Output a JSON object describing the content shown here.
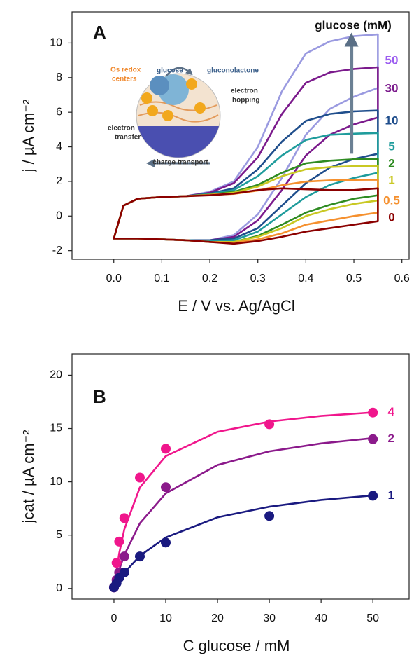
{
  "chart_data": [
    {
      "type": "line",
      "title": "A",
      "legend_title": "glucose (mM)",
      "x_label": "E / V vs. Ag/AgCl",
      "y_label": "j / µA cm⁻²",
      "x": [
        0,
        0.02,
        0.05,
        0.1,
        0.15,
        0.2,
        0.25,
        0.3,
        0.35,
        0.4,
        0.45,
        0.5,
        0.55,
        0.55,
        0.5,
        0.45,
        0.4,
        0.35,
        0.3,
        0.25,
        0.2,
        0.15,
        0.1,
        0.05,
        0
      ],
      "series": [
        {
          "name": "50",
          "color": "#9a9ae0",
          "label_color": "#9b5cf0",
          "values": [
            -1.3,
            0.6,
            1.0,
            1.1,
            1.15,
            1.4,
            2.0,
            4.0,
            7.2,
            9.4,
            10.1,
            10.4,
            10.5,
            7.4,
            6.9,
            6.2,
            4.7,
            2.2,
            0.1,
            -1.1,
            -1.4,
            -1.4,
            -1.35,
            -1.3,
            -1.3
          ]
        },
        {
          "name": "30",
          "color": "#7b1a8c",
          "label_color": "#7b1a8c",
          "values": [
            -1.3,
            0.6,
            1.0,
            1.1,
            1.15,
            1.35,
            1.9,
            3.4,
            5.9,
            7.7,
            8.3,
            8.5,
            8.6,
            5.7,
            5.3,
            4.7,
            3.5,
            1.5,
            -0.25,
            -1.2,
            -1.4,
            -1.4,
            -1.35,
            -1.3,
            -1.3
          ]
        },
        {
          "name": "10",
          "color": "#1f4e8c",
          "label_color": "#1f4e8c",
          "values": [
            -1.3,
            0.6,
            1.0,
            1.1,
            1.15,
            1.3,
            1.6,
            2.7,
            4.3,
            5.5,
            5.9,
            6.05,
            6.1,
            3.6,
            3.3,
            2.8,
            1.9,
            0.6,
            -0.7,
            -1.3,
            -1.4,
            -1.4,
            -1.35,
            -1.3,
            -1.3
          ]
        },
        {
          "name": "5",
          "color": "#1f9c9c",
          "label_color": "#1f9c9c",
          "values": [
            -1.3,
            0.6,
            1.0,
            1.1,
            1.15,
            1.27,
            1.5,
            2.3,
            3.5,
            4.4,
            4.7,
            4.76,
            4.8,
            2.5,
            2.2,
            1.8,
            1.1,
            0.1,
            -0.9,
            -1.4,
            -1.45,
            -1.4,
            -1.35,
            -1.3,
            -1.3
          ]
        },
        {
          "name": "2",
          "color": "#2e8b22",
          "label_color": "#2e8b22",
          "values": [
            -1.3,
            0.6,
            1.0,
            1.1,
            1.15,
            1.24,
            1.4,
            1.8,
            2.5,
            3.05,
            3.2,
            3.28,
            3.3,
            1.2,
            1.0,
            0.65,
            0.2,
            -0.5,
            -1.15,
            -1.5,
            -1.5,
            -1.4,
            -1.35,
            -1.3,
            -1.3
          ]
        },
        {
          "name": "1",
          "color": "#c9c823",
          "label_color": "#c9c823",
          "values": [
            -1.3,
            0.6,
            1.0,
            1.1,
            1.15,
            1.23,
            1.35,
            1.7,
            2.3,
            2.7,
            2.83,
            2.88,
            2.9,
            0.9,
            0.7,
            0.4,
            0.0,
            -0.7,
            -1.2,
            -1.5,
            -1.5,
            -1.4,
            -1.35,
            -1.3,
            -1.3
          ]
        },
        {
          "name": "0.5",
          "color": "#f5902e",
          "label_color": "#f5902e",
          "values": [
            -1.3,
            0.6,
            1.0,
            1.1,
            1.15,
            1.22,
            1.28,
            1.47,
            1.78,
            1.99,
            2.06,
            2.09,
            2.1,
            0.2,
            0.0,
            -0.25,
            -0.5,
            -1.0,
            -1.35,
            -1.55,
            -1.5,
            -1.4,
            -1.35,
            -1.3,
            -1.3
          ]
        },
        {
          "name": "0",
          "color": "#8b0000",
          "label_color": "#8b0000",
          "values": [
            -1.3,
            0.6,
            1.0,
            1.1,
            1.15,
            1.2,
            1.3,
            1.5,
            1.6,
            1.55,
            1.5,
            1.5,
            1.6,
            -0.3,
            -0.5,
            -0.7,
            -0.9,
            -1.2,
            -1.45,
            -1.6,
            -1.5,
            -1.4,
            -1.35,
            -1.3,
            -1.3
          ]
        }
      ],
      "xlim": [
        -0.087,
        0.615
      ],
      "ylim": [
        -2.5,
        11.8
      ],
      "xticks": [
        {
          "value": 0,
          "label": "0.0"
        },
        0.1,
        0.2,
        0.3,
        0.4,
        0.5,
        0.6
      ],
      "yticks": [
        -2,
        0,
        2,
        4,
        6,
        8,
        10
      ],
      "annotations": [
        "glucose",
        "gluconolactone",
        "Os redox",
        "centers",
        "electron",
        "hopping",
        "electron",
        "transfer",
        "charge transport"
      ]
    },
    {
      "type": "scatter",
      "title": "B",
      "x_label": "C glucose / mM",
      "y_label": "jcat / µA cm⁻²",
      "series": [
        {
          "name": "4",
          "color": "#f0168c",
          "x": [
            0,
            0.5,
            1,
            2,
            5,
            10,
            30,
            50
          ],
          "values": [
            0.1,
            2.4,
            4.4,
            6.6,
            10.4,
            13.1,
            15.4,
            16.5
          ],
          "fit_x": [
            0,
            1,
            2,
            5,
            10,
            20,
            30,
            40,
            50
          ],
          "fit_values": [
            0,
            3.27,
            5.54,
            9.47,
            12.41,
            14.69,
            15.65,
            16.18,
            16.51
          ]
        },
        {
          "name": "2",
          "color": "#8b1a8b",
          "x": [
            0,
            0.5,
            1,
            2,
            10,
            50
          ],
          "values": [
            0.1,
            0.8,
            1.5,
            3.0,
            9.5,
            14.0
          ],
          "fit_x": [
            0,
            1,
            2,
            5,
            10,
            20,
            30,
            40,
            50
          ],
          "fit_values": [
            0,
            1.74,
            3.14,
            6.11,
            8.92,
            11.58,
            12.86,
            13.6,
            14.1
          ]
        },
        {
          "name": "1",
          "color": "#1a1a80",
          "x": [
            0,
            0.5,
            1,
            2,
            5,
            10,
            30,
            50
          ],
          "values": [
            0.1,
            0.5,
            1.0,
            1.5,
            3.0,
            4.3,
            6.8,
            8.7
          ],
          "fit_x": [
            0,
            1,
            2,
            5,
            10,
            20,
            30,
            40,
            50
          ],
          "fit_values": [
            0,
            0.79,
            1.47,
            3.06,
            4.78,
            6.67,
            7.67,
            8.3,
            8.73
          ]
        }
      ],
      "xlim": [
        -8.1,
        57
      ],
      "ylim": [
        -1,
        22
      ],
      "xticks": [
        0,
        10,
        20,
        30,
        40,
        50
      ],
      "yticks": [
        0,
        5,
        10,
        15,
        20
      ]
    }
  ]
}
